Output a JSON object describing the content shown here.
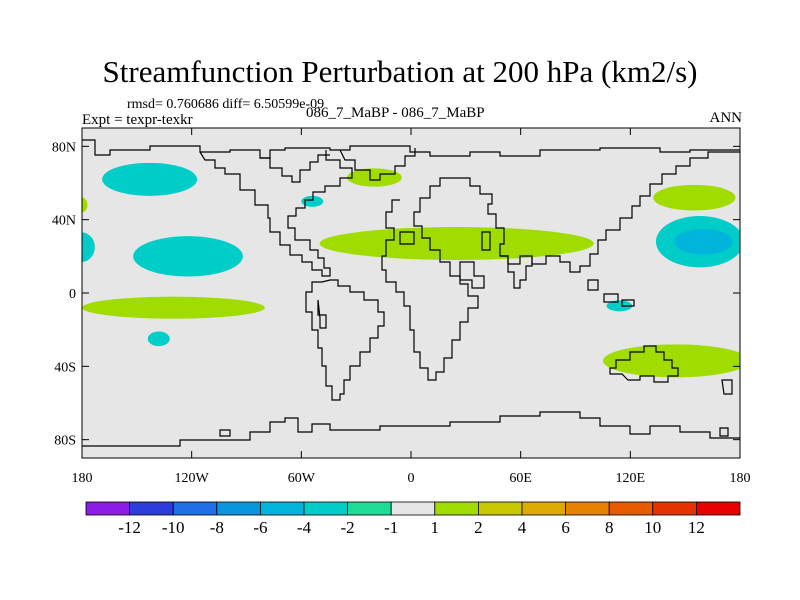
{
  "title": "Streamfunction Perturbation at 200 hPa (km2/s)",
  "stats": "rmsd= 0.760686 diff= 6.50599e-09",
  "expt": "Expt = texpr-texkr",
  "center_label": "086_7_MaBP - 086_7_MaBP",
  "season": "ANN",
  "chart_data": {
    "type": "heatmap",
    "title": "Streamfunction Perturbation at 200 hPa (km2/s)",
    "x_ticks": [
      "180",
      "120W",
      "60W",
      "0",
      "60E",
      "120E",
      "180"
    ],
    "y_ticks": [
      "80N",
      "40N",
      "0",
      "40S",
      "80S"
    ],
    "xlim": [
      -180,
      180
    ],
    "ylim": [
      -90,
      90
    ],
    "x_tick_values": [
      -180,
      -120,
      -60,
      0,
      60,
      120,
      180
    ],
    "y_tick_values": [
      80,
      40,
      0,
      -40,
      -80
    ],
    "colorbar": {
      "labels": [
        "-12",
        "-10",
        "-8",
        "-6",
        "-4",
        "-2",
        "-1",
        "1",
        "2",
        "4",
        "6",
        "8",
        "10",
        "12"
      ],
      "colors": [
        "#8a1ee6",
        "#2d3cdc",
        "#1e6ee6",
        "#0a96dc",
        "#00b4dc",
        "#00cdc8",
        "#1edc96",
        "#e6e6e6",
        "#a0dc00",
        "#c8c800",
        "#dcaa00",
        "#e68200",
        "#e65a00",
        "#e63200",
        "#e60000"
      ]
    },
    "background_color": "#e6e6e6",
    "anomaly_regions": [
      {
        "name": "north-pacific-negative",
        "lon": -143,
        "lat": 62,
        "lon_span": 52,
        "lat_span": 18,
        "level": "-2"
      },
      {
        "name": "central-pacific-negative",
        "lon": -122,
        "lat": 20,
        "lon_span": 60,
        "lat_span": 22,
        "level": "-2"
      },
      {
        "name": "west-pacific-negative",
        "lon": 158,
        "lat": 28,
        "lon_span": 48,
        "lat_span": 28,
        "level": "-2"
      },
      {
        "name": "west-pacific-core",
        "lon": 160,
        "lat": 28,
        "lon_span": 32,
        "lat_span": 14,
        "level": "-4"
      },
      {
        "name": "north-atlantic-small-negative",
        "lon": -54,
        "lat": 50,
        "lon_span": 12,
        "lat_span": 6,
        "level": "-2"
      },
      {
        "name": "north-pacific-edge-negative",
        "lon": -180,
        "lat": 25,
        "lon_span": 14,
        "lat_span": 16,
        "level": "-2"
      },
      {
        "name": "south-pacific-negative",
        "lon": -138,
        "lat": -25,
        "lon_span": 12,
        "lat_span": 8,
        "level": "-2"
      },
      {
        "name": "indian-ocean-negative",
        "lon": 114,
        "lat": -7,
        "lon_span": 14,
        "lat_span": 6,
        "level": "-2"
      },
      {
        "name": "subtropical-jet-positive",
        "lon": 25,
        "lat": 27,
        "lon_span": 150,
        "lat_span": 18,
        "level": "1"
      },
      {
        "name": "north-atlantic-positive",
        "lon": -20,
        "lat": 63,
        "lon_span": 30,
        "lat_span": 10,
        "level": "1"
      },
      {
        "name": "tropical-pacific-positive",
        "lon": -130,
        "lat": -8,
        "lon_span": 100,
        "lat_span": 12,
        "level": "1"
      },
      {
        "name": "southern-ocean-positive",
        "lon": 145,
        "lat": -37,
        "lon_span": 80,
        "lat_span": 18,
        "level": "1"
      },
      {
        "name": "north-pacific-positive",
        "lon": 155,
        "lat": 52,
        "lon_span": 45,
        "lat_span": 14,
        "level": "1"
      },
      {
        "name": "edge-positive",
        "lon": -180,
        "lat": 48,
        "lon_span": 6,
        "lat_span": 8,
        "level": "1"
      }
    ]
  }
}
